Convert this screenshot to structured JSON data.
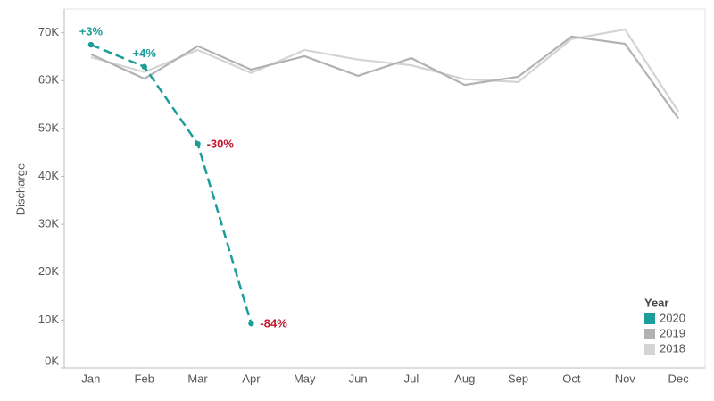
{
  "chart_data": {
    "type": "line",
    "y_label": "Discharge",
    "categories": [
      "Jan",
      "Feb",
      "Mar",
      "Apr",
      "May",
      "Jun",
      "Jul",
      "Aug",
      "Sep",
      "Oct",
      "Nov",
      "Dec"
    ],
    "ylim": [
      0,
      74600
    ],
    "yticks": [
      {
        "value": 0,
        "label": "0K"
      },
      {
        "value": 10000,
        "label": "10K"
      },
      {
        "value": 20000,
        "label": "20K"
      },
      {
        "value": 30000,
        "label": "30K"
      },
      {
        "value": 40000,
        "label": "40K"
      },
      {
        "value": 50000,
        "label": "50K"
      },
      {
        "value": 60000,
        "label": "60K"
      },
      {
        "value": 70000,
        "label": "70K"
      }
    ],
    "legend_title": "Year",
    "legend_position": "lower right",
    "series": [
      {
        "name": "2018",
        "color": "#d4d4d4",
        "values": [
          64900,
          61800,
          66400,
          61600,
          66400,
          64400,
          63200,
          60300,
          59700,
          68700,
          70700,
          53500
        ]
      },
      {
        "name": "2019",
        "color": "#b2b2b2",
        "values": [
          65500,
          60400,
          67200,
          62300,
          65100,
          61000,
          64700,
          59100,
          60800,
          69200,
          67700,
          52100
        ]
      },
      {
        "name": "2020",
        "color": "#1b9e99",
        "dashed": true,
        "markers": true,
        "values": [
          67500,
          62900,
          46800,
          9300,
          null,
          null,
          null,
          null,
          null,
          null,
          null,
          null
        ]
      }
    ],
    "annotations": [
      {
        "text": "+3%",
        "color": "#1b9e99"
      },
      {
        "text": "+4%",
        "color": "#1b9e99"
      },
      {
        "text": "-30%",
        "color": "#c0172f"
      },
      {
        "text": "-84%",
        "color": "#c0172f"
      }
    ]
  }
}
